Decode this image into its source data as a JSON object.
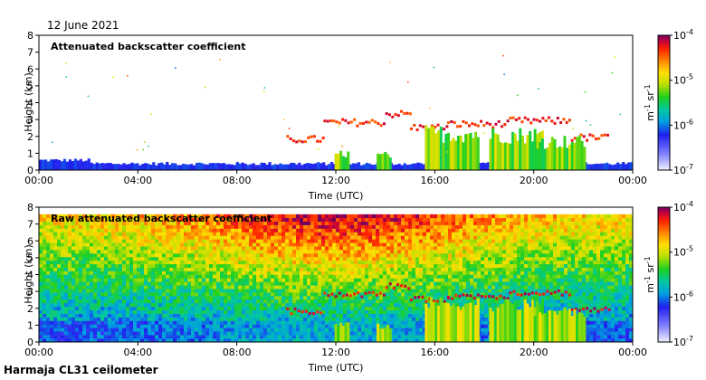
{
  "date": "12 June 2021",
  "instrument": "Harmaja CL31 ceilometer",
  "chart_data": [
    {
      "type": "heatmap",
      "title": "Attenuated backscatter coefficient",
      "xlabel": "Time (UTC)",
      "ylabel": "Height (km)",
      "xlim": [
        "00:00",
        "24:00"
      ],
      "ylim": [
        0,
        8
      ],
      "x_ticks": [
        "00:00",
        "04:00",
        "08:00",
        "12:00",
        "16:00",
        "20:00",
        "00:00"
      ],
      "y_ticks": [
        "0",
        "1",
        "2",
        "3",
        "4",
        "5",
        "6",
        "7",
        "8"
      ],
      "colorbar": {
        "label_base": "m",
        "label_exp1": "-1",
        "label_mid": " sr",
        "label_exp2": "-1",
        "scale": "log",
        "range": [
          1e-07,
          0.0001
        ],
        "ticks": [
          {
            "base": "10",
            "exp": "-7"
          },
          {
            "base": "10",
            "exp": "-6"
          },
          {
            "base": "10",
            "exp": "-5"
          },
          {
            "base": "10",
            "exp": "-4"
          }
        ]
      },
      "features": {
        "boundary_layer_top_km": 0.35,
        "cloud_layers": [
          {
            "start_h": 10.0,
            "end_h": 11.5,
            "height_km": 1.9
          },
          {
            "start_h": 11.5,
            "end_h": 14.0,
            "height_km": 2.9
          },
          {
            "start_h": 14.0,
            "end_h": 15.0,
            "height_km": 3.4
          },
          {
            "start_h": 15.0,
            "end_h": 16.5,
            "height_km": 2.6
          },
          {
            "start_h": 16.5,
            "end_h": 19.0,
            "height_km": 2.8
          },
          {
            "start_h": 19.0,
            "end_h": 21.5,
            "height_km": 3.0
          },
          {
            "start_h": 21.5,
            "end_h": 23.0,
            "height_km": 2.0
          }
        ],
        "precipitation_shafts": [
          {
            "time_h": 12.2,
            "top_km": 1.2
          },
          {
            "time_h": 13.9,
            "top_km": 1.1
          },
          {
            "time_h": 16.7,
            "top_km": 2.7
          },
          {
            "time_h": 19.3,
            "top_km": 2.6
          },
          {
            "time_h": 21.0,
            "top_km": 2.1
          }
        ]
      }
    },
    {
      "type": "heatmap",
      "title": "Raw attenuated backscatter coefficient",
      "xlabel": "Time (UTC)",
      "ylabel": "Height (km)",
      "xlim": [
        "00:00",
        "24:00"
      ],
      "ylim": [
        0,
        8
      ],
      "x_ticks": [
        "00:00",
        "04:00",
        "08:00",
        "12:00",
        "16:00",
        "20:00",
        "00:00"
      ],
      "y_ticks": [
        "0",
        "1",
        "2",
        "3",
        "4",
        "5",
        "6",
        "7",
        "8"
      ],
      "colorbar": {
        "label_base": "m",
        "label_exp1": "-1",
        "label_mid": " sr",
        "label_exp2": "-1",
        "scale": "log",
        "range": [
          1e-07,
          0.0001
        ],
        "ticks": [
          {
            "base": "10",
            "exp": "-7"
          },
          {
            "base": "10",
            "exp": "-6"
          },
          {
            "base": "10",
            "exp": "-5"
          },
          {
            "base": "10",
            "exp": "-4"
          }
        ]
      }
    }
  ]
}
